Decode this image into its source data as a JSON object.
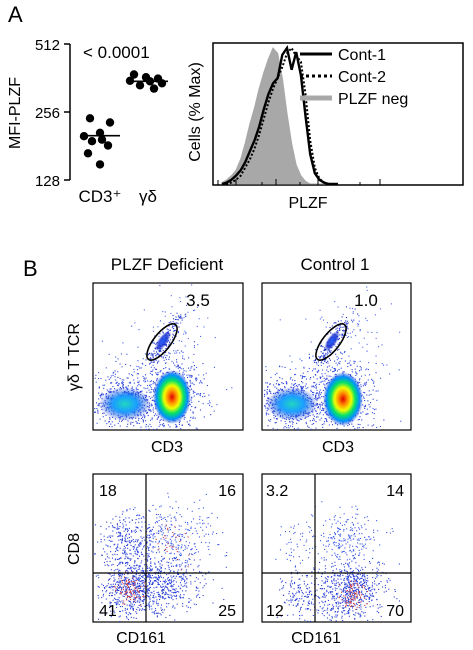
{
  "panels": {
    "a_label": "A",
    "b_label": "B"
  },
  "scatter": {
    "y_label": "MFI-PLZF",
    "y_ticks": [
      "512",
      "256",
      "128"
    ],
    "categories": [
      "CD3⁺",
      "γδ"
    ],
    "p_value": "< 0.0001"
  },
  "histogram": {
    "x_label": "PLZF",
    "y_label": "Cells (% Max)",
    "legend": [
      {
        "name": "Cont-1",
        "style": "solid",
        "color": "#000000"
      },
      {
        "name": "Cont-2",
        "style": "dotted",
        "color": "#000000"
      },
      {
        "name": "PLZF neg",
        "style": "filled",
        "color": "#a8a8a8"
      }
    ]
  },
  "flow_top": {
    "y_label": "γδ T TCR",
    "x_label": "CD3",
    "plots": [
      {
        "title": "PLZF Deficient",
        "gate_value": "3.5"
      },
      {
        "title": "Control 1",
        "gate_value": "1.0"
      }
    ]
  },
  "flow_bottom": {
    "y_label": "CD8",
    "x_label": "CD161",
    "plots": [
      {
        "quadrants": {
          "upper_left": "18",
          "upper_right": "16",
          "lower_left": "41",
          "lower_right": "25"
        }
      },
      {
        "quadrants": {
          "upper_left": "3.2",
          "upper_right": "14",
          "lower_left": "12",
          "lower_right": "70"
        }
      }
    ]
  },
  "chart_data": [
    {
      "type": "scatter",
      "ylabel": "MFI-PLZF",
      "y_scale": "log2",
      "ylim": [
        128,
        512
      ],
      "categories": [
        "CD3⁺",
        "γδ"
      ],
      "series": [
        {
          "category": "CD3⁺",
          "values": [
            240,
            230,
            207,
            200,
            193,
            190,
            182,
            168,
            150
          ],
          "mean": 201
        },
        {
          "category": "γδ",
          "values": [
            375,
            365,
            360,
            352,
            350,
            343,
            336,
            325
          ],
          "mean": 350
        }
      ],
      "annotation": "< 0.0001"
    },
    {
      "type": "line",
      "xlabel": "PLZF",
      "ylabel": "Cells (% Max)",
      "legend_position": "top-right",
      "x": [
        0,
        4,
        8,
        12,
        16,
        20,
        24,
        28,
        32,
        36,
        40,
        44,
        48,
        52,
        56,
        60,
        64,
        68,
        72,
        76,
        80,
        84,
        88,
        92,
        96,
        100
      ],
      "series": [
        {
          "name": "PLZF neg",
          "values": [
            1,
            3,
            6,
            10,
            18,
            30,
            44,
            56,
            70,
            82,
            92,
            100,
            96,
            78,
            52,
            30,
            14,
            6,
            2,
            0,
            0,
            0,
            0,
            0,
            0,
            0
          ]
        },
        {
          "name": "Cont-1",
          "values": [
            0,
            1,
            3,
            6,
            10,
            16,
            24,
            32,
            42,
            55,
            66,
            74,
            78,
            95,
            100,
            84,
            97,
            80,
            50,
            22,
            8,
            3,
            1,
            0,
            0,
            0
          ]
        },
        {
          "name": "Cont-2",
          "values": [
            0,
            0,
            1,
            3,
            6,
            12,
            18,
            26,
            36,
            48,
            60,
            70,
            78,
            86,
            96,
            100,
            94,
            90,
            66,
            32,
            12,
            4,
            1,
            0,
            0,
            0
          ]
        }
      ]
    }
  ]
}
